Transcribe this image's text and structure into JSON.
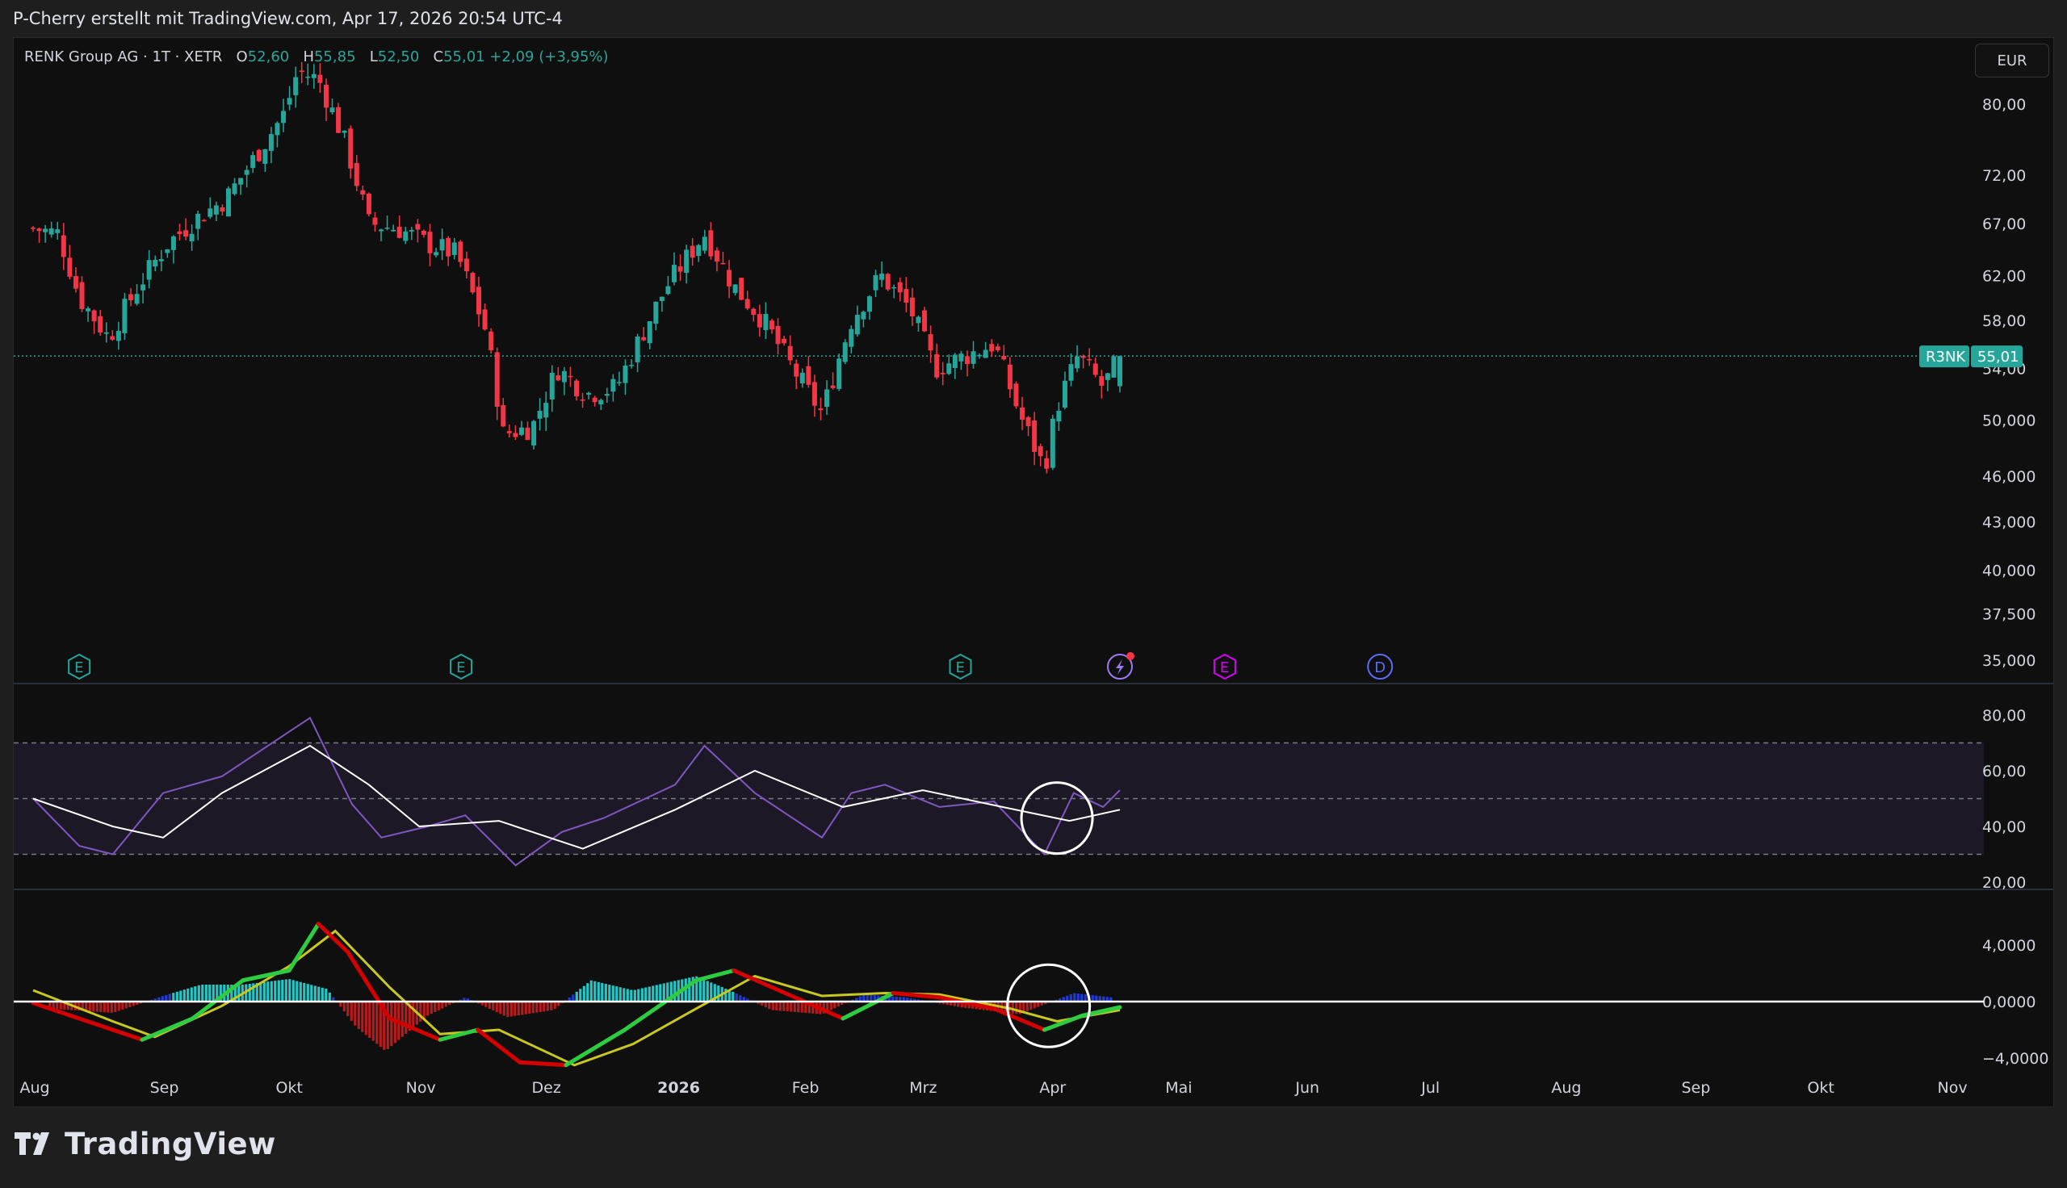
{
  "header": {
    "text": "P-Cherry erstellt mit TradingView.com, Apr 17, 2026 20:54 UTC-4"
  },
  "legend": {
    "symbol": "RENK Group AG · 1T · XETR",
    "open_label": "O",
    "open": "52,60",
    "high_label": "H",
    "high": "55,85",
    "low_label": "L",
    "low": "52,50",
    "close_label": "C",
    "close": "55,01",
    "change": "+2,09 (+3,95%)"
  },
  "currency_button": "EUR",
  "price_label": {
    "ticker": "R3NK",
    "value": "55,01"
  },
  "colors": {
    "up": "#26a69a",
    "down": "#f23645",
    "rsi": "#7e57c2",
    "rsi_ma": "#ffffff",
    "macd_line": "#2ecc40",
    "macd_line_down": "#d40000",
    "signal_line": "#c8c81e",
    "hist_pos_bright": "#26c6c6",
    "hist_pos_dim": "#1f3bd6",
    "hist_neg": "#b71c1c",
    "background": "#0f0f0f"
  },
  "event_markers": [
    {
      "type": "E",
      "date": "2025-08-12",
      "color": "#26a69a"
    },
    {
      "type": "E",
      "date": "2025-11-11",
      "color": "#26a69a"
    },
    {
      "type": "E",
      "date": "2026-03-10",
      "color": "#26a69a"
    },
    {
      "type": "lightning",
      "date": "2026-04-17",
      "color": "#9c7bf5"
    },
    {
      "type": "E",
      "date": "2026-05-12",
      "color": "#d500f9"
    },
    {
      "type": "D",
      "date": "2026-06-18",
      "color": "#5b6cf5"
    }
  ],
  "chart_data": [
    {
      "type": "candlestick",
      "title": "RENK Group AG · 1T · XETR",
      "y_axis_ticks": [
        "80,00",
        "72,00",
        "67,00",
        "62,00",
        "58,00",
        "54,00",
        "50,000",
        "46,000",
        "43,000",
        "40,000",
        "37,500",
        "35,000"
      ],
      "y_scale": "log",
      "ylim": [
        34.5,
        85
      ],
      "x_axis_ticks": [
        "Aug",
        "Sep",
        "Okt",
        "Nov",
        "Dez",
        "2026",
        "Feb",
        "Mrz",
        "Apr",
        "Mai",
        "Jun",
        "Jul",
        "Aug",
        "Sep",
        "Okt",
        "Nov"
      ],
      "last_close": 55.01,
      "approx_close_path": [
        {
          "date": "2025-08-01",
          "close": 66.5
        },
        {
          "date": "2025-08-07",
          "close": 66.0
        },
        {
          "date": "2025-08-12",
          "close": 60.0
        },
        {
          "date": "2025-08-19",
          "close": 56.5
        },
        {
          "date": "2025-08-26",
          "close": 61.0
        },
        {
          "date": "2025-09-02",
          "close": 65.0
        },
        {
          "date": "2025-09-09",
          "close": 67.5
        },
        {
          "date": "2025-09-16",
          "close": 69.5
        },
        {
          "date": "2025-09-23",
          "close": 74.0
        },
        {
          "date": "2025-09-30",
          "close": 79.0
        },
        {
          "date": "2025-10-03",
          "close": 84.0
        },
        {
          "date": "2025-10-08",
          "close": 83.0
        },
        {
          "date": "2025-10-14",
          "close": 76.0
        },
        {
          "date": "2025-10-20",
          "close": 67.0
        },
        {
          "date": "2025-10-27",
          "close": 66.5
        },
        {
          "date": "2025-11-03",
          "close": 65.0
        },
        {
          "date": "2025-11-10",
          "close": 64.0
        },
        {
          "date": "2025-11-17",
          "close": 57.0
        },
        {
          "date": "2025-11-21",
          "close": 49.0
        },
        {
          "date": "2025-11-28",
          "close": 49.5
        },
        {
          "date": "2025-12-04",
          "close": 54.0
        },
        {
          "date": "2025-12-11",
          "close": 52.0
        },
        {
          "date": "2025-12-18",
          "close": 52.5
        },
        {
          "date": "2025-12-30",
          "close": 61.0
        },
        {
          "date": "2026-01-08",
          "close": 66.0
        },
        {
          "date": "2026-01-15",
          "close": 61.0
        },
        {
          "date": "2026-01-22",
          "close": 58.0
        },
        {
          "date": "2026-01-29",
          "close": 54.0
        },
        {
          "date": "2026-02-05",
          "close": 50.5
        },
        {
          "date": "2026-02-12",
          "close": 58.0
        },
        {
          "date": "2026-02-19",
          "close": 62.0
        },
        {
          "date": "2026-02-26",
          "close": 59.0
        },
        {
          "date": "2026-03-04",
          "close": 54.0
        },
        {
          "date": "2026-03-11",
          "close": 55.0
        },
        {
          "date": "2026-03-18",
          "close": 56.0
        },
        {
          "date": "2026-03-24",
          "close": 50.5
        },
        {
          "date": "2026-03-30",
          "close": 46.5
        },
        {
          "date": "2026-04-02",
          "close": 51.0
        },
        {
          "date": "2026-04-07",
          "close": 55.0
        },
        {
          "date": "2026-04-13",
          "close": 52.5
        },
        {
          "date": "2026-04-17",
          "close": 55.01
        }
      ]
    },
    {
      "type": "line",
      "indicator": "RSI",
      "y_axis_ticks": [
        "80,00",
        "60,00",
        "40,00",
        "20,00"
      ],
      "ylim": [
        18,
        84
      ],
      "band": [
        30,
        70
      ],
      "midline": 50,
      "series": [
        {
          "values_by_date": [
            {
              "date": "2025-08-01",
              "v": 50
            },
            {
              "date": "2025-08-12",
              "v": 33
            },
            {
              "date": "2025-08-20",
              "v": 30
            },
            {
              "date": "2025-09-01",
              "v": 52
            },
            {
              "date": "2025-09-15",
              "v": 58
            },
            {
              "date": "2025-10-01",
              "v": 74
            },
            {
              "date": "2025-10-06",
              "v": 79
            },
            {
              "date": "2025-10-16",
              "v": 48
            },
            {
              "date": "2025-10-23",
              "v": 36
            },
            {
              "date": "2025-11-03",
              "v": 40
            },
            {
              "date": "2025-11-12",
              "v": 44
            },
            {
              "date": "2025-11-24",
              "v": 26
            },
            {
              "date": "2025-12-05",
              "v": 38
            },
            {
              "date": "2025-12-15",
              "v": 43
            },
            {
              "date": "2026-01-01",
              "v": 55
            },
            {
              "date": "2026-01-08",
              "v": 69
            },
            {
              "date": "2026-01-20",
              "v": 52
            },
            {
              "date": "2026-02-05",
              "v": 36
            },
            {
              "date": "2026-02-12",
              "v": 52
            },
            {
              "date": "2026-02-20",
              "v": 55
            },
            {
              "date": "2026-03-05",
              "v": 47
            },
            {
              "date": "2026-03-18",
              "v": 49
            },
            {
              "date": "2026-03-30",
              "v": 30
            },
            {
              "date": "2026-04-06",
              "v": 52
            },
            {
              "date": "2026-04-13",
              "v": 47
            },
            {
              "date": "2026-04-17",
              "v": 53
            }
          ]
        },
        {
          "values_by_date": [
            {
              "date": "2025-08-01",
              "v": 50
            },
            {
              "date": "2025-08-20",
              "v": 40
            },
            {
              "date": "2025-09-01",
              "v": 36
            },
            {
              "date": "2025-09-15",
              "v": 52
            },
            {
              "date": "2025-10-06",
              "v": 69
            },
            {
              "date": "2025-10-20",
              "v": 55
            },
            {
              "date": "2025-11-01",
              "v": 40
            },
            {
              "date": "2025-11-20",
              "v": 42
            },
            {
              "date": "2025-12-10",
              "v": 32
            },
            {
              "date": "2026-01-01",
              "v": 46
            },
            {
              "date": "2026-01-20",
              "v": 60
            },
            {
              "date": "2026-02-10",
              "v": 47
            },
            {
              "date": "2026-03-01",
              "v": 53
            },
            {
              "date": "2026-03-20",
              "v": 47
            },
            {
              "date": "2026-04-05",
              "v": 42
            },
            {
              "date": "2026-04-17",
              "v": 46
            }
          ]
        }
      ]
    },
    {
      "type": "line",
      "indicator": "MACD",
      "y_axis_ticks": [
        "4,0000",
        "0,0000",
        "−4,0000"
      ],
      "ylim": [
        -5.5,
        6.0
      ],
      "zero_line": 0,
      "series": [
        {
          "values_by_date": [
            {
              "date": "2025-08-01",
              "v": -0.1
            },
            {
              "date": "2025-08-15",
              "v": -1.5
            },
            {
              "date": "2025-08-27",
              "v": -2.7
            },
            {
              "date": "2025-09-08",
              "v": -1.2
            },
            {
              "date": "2025-09-20",
              "v": 1.5
            },
            {
              "date": "2025-10-01",
              "v": 2.2
            },
            {
              "date": "2025-10-08",
              "v": 5.5
            },
            {
              "date": "2025-10-15",
              "v": 3.5
            },
            {
              "date": "2025-10-25",
              "v": -1.2
            },
            {
              "date": "2025-11-06",
              "v": -2.7
            },
            {
              "date": "2025-11-15",
              "v": -2.0
            },
            {
              "date": "2025-11-25",
              "v": -4.3
            },
            {
              "date": "2025-12-06",
              "v": -4.5
            },
            {
              "date": "2025-12-20",
              "v": -2.0
            },
            {
              "date": "2026-01-06",
              "v": 1.5
            },
            {
              "date": "2026-01-15",
              "v": 2.2
            },
            {
              "date": "2026-01-28",
              "v": 0.5
            },
            {
              "date": "2026-02-10",
              "v": -1.2
            },
            {
              "date": "2026-02-22",
              "v": 0.6
            },
            {
              "date": "2026-03-05",
              "v": 0.3
            },
            {
              "date": "2026-03-18",
              "v": -0.5
            },
            {
              "date": "2026-03-30",
              "v": -2.0
            },
            {
              "date": "2026-04-08",
              "v": -1.0
            },
            {
              "date": "2026-04-17",
              "v": -0.4
            }
          ]
        },
        {
          "values_by_date": [
            {
              "date": "2025-08-01",
              "v": 0.8
            },
            {
              "date": "2025-08-20",
              "v": -1.4
            },
            {
              "date": "2025-08-30",
              "v": -2.5
            },
            {
              "date": "2025-09-15",
              "v": -0.3
            },
            {
              "date": "2025-10-01",
              "v": 2.5
            },
            {
              "date": "2025-10-12",
              "v": 5.0
            },
            {
              "date": "2025-10-25",
              "v": 1.0
            },
            {
              "date": "2025-11-06",
              "v": -2.3
            },
            {
              "date": "2025-11-20",
              "v": -2.0
            },
            {
              "date": "2025-12-08",
              "v": -4.5
            },
            {
              "date": "2025-12-22",
              "v": -3.0
            },
            {
              "date": "2026-01-06",
              "v": -0.5
            },
            {
              "date": "2026-01-20",
              "v": 1.8
            },
            {
              "date": "2026-02-05",
              "v": 0.4
            },
            {
              "date": "2026-02-20",
              "v": 0.6
            },
            {
              "date": "2026-03-05",
              "v": 0.5
            },
            {
              "date": "2026-03-22",
              "v": -0.5
            },
            {
              "date": "2026-04-02",
              "v": -1.4
            },
            {
              "date": "2026-04-17",
              "v": -0.6
            }
          ]
        }
      ],
      "histogram_by_date": [
        {
          "date": "2025-08-05",
          "v": -0.5
        },
        {
          "date": "2025-08-20",
          "v": -0.8
        },
        {
          "date": "2025-09-01",
          "v": 0.4
        },
        {
          "date": "2025-09-10",
          "v": 1.2
        },
        {
          "date": "2025-09-20",
          "v": 1.2
        },
        {
          "date": "2025-10-01",
          "v": 1.6
        },
        {
          "date": "2025-10-10",
          "v": 0.9
        },
        {
          "date": "2025-10-17",
          "v": -1.8
        },
        {
          "date": "2025-10-24",
          "v": -3.5
        },
        {
          "date": "2025-11-03",
          "v": -1.0
        },
        {
          "date": "2025-11-12",
          "v": 0.3
        },
        {
          "date": "2025-11-22",
          "v": -1.1
        },
        {
          "date": "2025-12-03",
          "v": -0.6
        },
        {
          "date": "2025-12-12",
          "v": 1.5
        },
        {
          "date": "2025-12-22",
          "v": 0.8
        },
        {
          "date": "2026-01-06",
          "v": 1.8
        },
        {
          "date": "2026-01-14",
          "v": 0.8
        },
        {
          "date": "2026-01-24",
          "v": -0.6
        },
        {
          "date": "2026-02-05",
          "v": -0.9
        },
        {
          "date": "2026-02-15",
          "v": 0.5
        },
        {
          "date": "2026-02-25",
          "v": 0.3
        },
        {
          "date": "2026-03-10",
          "v": -0.4
        },
        {
          "date": "2026-03-24",
          "v": -0.9
        },
        {
          "date": "2026-04-06",
          "v": 0.6
        },
        {
          "date": "2026-04-15",
          "v": 0.3
        }
      ]
    }
  ]
}
